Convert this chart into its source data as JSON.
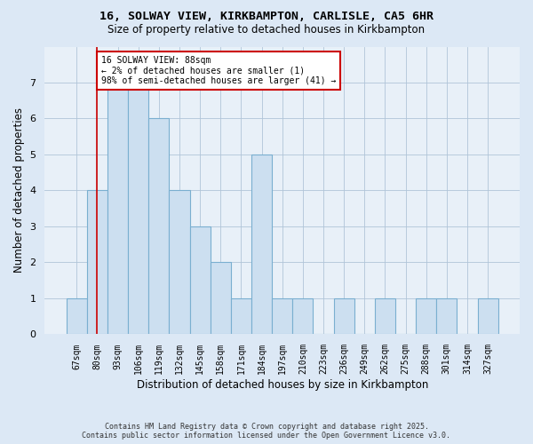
{
  "title_line1": "16, SOLWAY VIEW, KIRKBAMPTON, CARLISLE, CA5 6HR",
  "title_line2": "Size of property relative to detached houses in Kirkbampton",
  "xlabel": "Distribution of detached houses by size in Kirkbampton",
  "ylabel": "Number of detached properties",
  "footer_line1": "Contains HM Land Registry data © Crown copyright and database right 2025.",
  "footer_line2": "Contains public sector information licensed under the Open Government Licence v3.0.",
  "categories": [
    "67sqm",
    "80sqm",
    "93sqm",
    "106sqm",
    "119sqm",
    "132sqm",
    "145sqm",
    "158sqm",
    "171sqm",
    "184sqm",
    "197sqm",
    "210sqm",
    "223sqm",
    "236sqm",
    "249sqm",
    "262sqm",
    "275sqm",
    "288sqm",
    "301sqm",
    "314sqm",
    "327sqm"
  ],
  "values": [
    1,
    4,
    7,
    7,
    6,
    4,
    3,
    2,
    1,
    5,
    1,
    1,
    0,
    1,
    0,
    1,
    0,
    1,
    1,
    0,
    1
  ],
  "bar_color": "#ccdff0",
  "bar_edge_color": "#7aafd0",
  "highlight_bar_index": 1,
  "highlight_line_color": "#cc0000",
  "annotation_box_color": "#cc0000",
  "annotation_text": "16 SOLWAY VIEW: 88sqm\n← 2% of detached houses are smaller (1)\n98% of semi-detached houses are larger (41) →",
  "ylim": [
    0,
    8
  ],
  "yticks": [
    0,
    1,
    2,
    3,
    4,
    5,
    6,
    7,
    8
  ],
  "bg_color": "#dce8f5",
  "plot_bg_color": "#e8f0f8",
  "grid_color": "#b0c4d8"
}
